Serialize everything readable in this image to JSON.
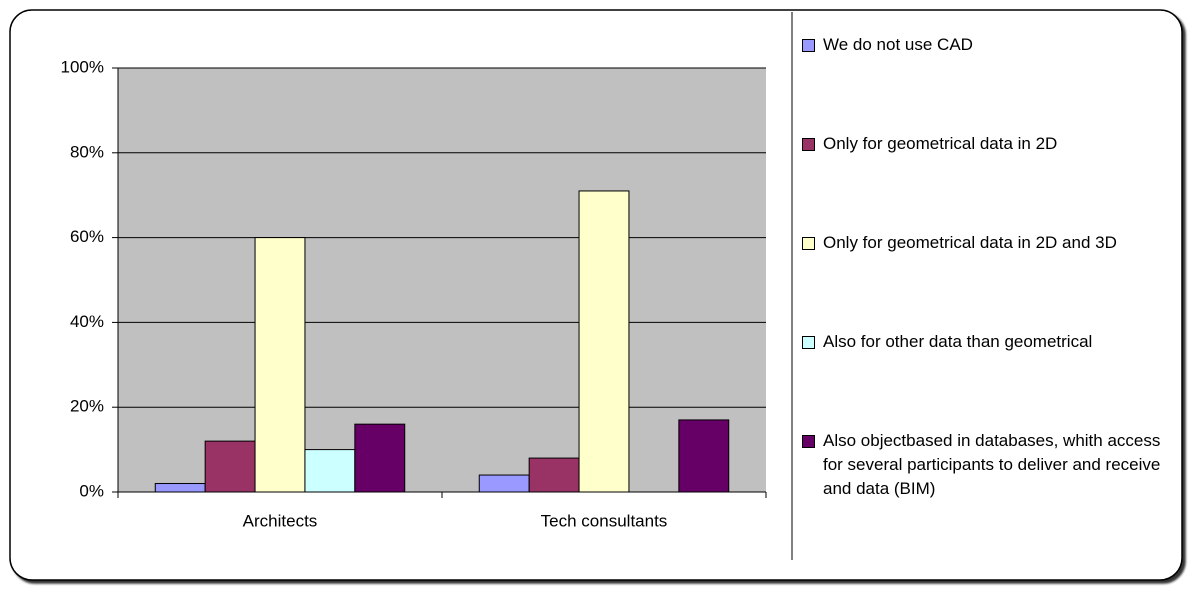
{
  "chart_data": {
    "type": "bar",
    "categories": [
      "Architects",
      "Tech consultants"
    ],
    "series": [
      {
        "name": "We do not use CAD",
        "color": "#9999ff",
        "values": [
          2,
          4
        ]
      },
      {
        "name": "Only for geometrical data in 2D",
        "color": "#993366",
        "values": [
          12,
          8
        ]
      },
      {
        "name": "Only for geometrical data in 2D and 3D",
        "color": "#ffffcc",
        "values": [
          60,
          71
        ]
      },
      {
        "name": "Also for other data than geometrical",
        "color": "#ccffff",
        "values": [
          10,
          0
        ]
      },
      {
        "name": "Also objectbased in databases, whith access for several participants to deliver and receive and data (BIM)",
        "color": "#660066",
        "values": [
          16,
          17
        ]
      }
    ],
    "ylim": [
      0,
      100
    ],
    "yticks": [
      {
        "value": 0,
        "label": "0%"
      },
      {
        "value": 20,
        "label": "20%"
      },
      {
        "value": 40,
        "label": "40%"
      },
      {
        "value": 60,
        "label": "60%"
      },
      {
        "value": 80,
        "label": "80%"
      },
      {
        "value": 100,
        "label": "100%"
      }
    ],
    "grid": true,
    "legend": "right"
  }
}
